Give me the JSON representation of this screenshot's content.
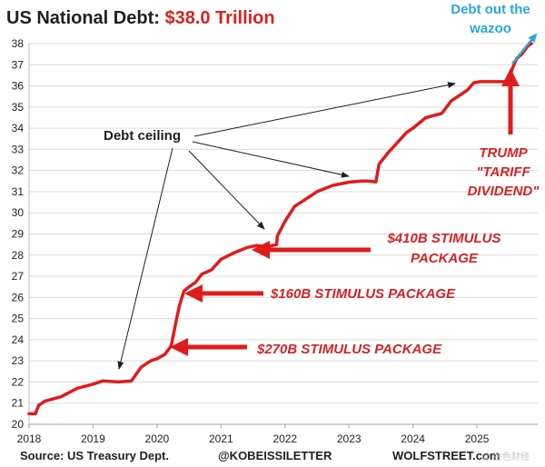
{
  "title": {
    "main": "US National Debt: ",
    "value": "$38.0 Trillion"
  },
  "wazoo": {
    "line1": "Debt out the",
    "line2": "wazoo"
  },
  "annotations": {
    "stimulus_410_line1": "$410B STIMULUS",
    "stimulus_410_line2": "PACKAGE",
    "stimulus_160": "$160B STIMULUS PACKAGE",
    "stimulus_270": "$270B STIMULUS PACKAGE",
    "trump_line1": "TRUMP",
    "trump_line2": "\"TARIFF",
    "trump_line3": "DIVIDEND\"",
    "debt_ceiling": "Debt ceiling"
  },
  "footer": {
    "source": "Source: US Treasury Dept.",
    "handle": "@KOBEISSILETTER",
    "site": "WOLFSTREET.com",
    "watermark": "@ 金色财经"
  },
  "colors": {
    "line": "#e01b1b",
    "arrow": "#e01b1b",
    "wazoo": "#2aa7d8",
    "grid": "#d9d9d9",
    "text": "#1f1f1f"
  },
  "chart_data": {
    "type": "line",
    "title": "US National Debt: $38.0 Trillion",
    "xlabel": "",
    "ylabel": "",
    "xlim": [
      2018.0,
      2025.95
    ],
    "ylim": [
      20,
      38
    ],
    "grid": "horizontal",
    "x_ticks": [
      "2018",
      "2019",
      "2020",
      "2021",
      "2022",
      "2023",
      "2024",
      "2025"
    ],
    "x_tick_values": [
      2018,
      2019,
      2020,
      2021,
      2022,
      2023,
      2024,
      2025
    ],
    "y_ticks": [
      20,
      21,
      22,
      23,
      24,
      25,
      26,
      27,
      28,
      29,
      30,
      31,
      32,
      33,
      34,
      35,
      36,
      37,
      38
    ],
    "series": [
      {
        "name": "",
        "x": [
          2018.0,
          2018.1,
          2018.15,
          2018.25,
          2018.5,
          2018.75,
          2019.0,
          2019.15,
          2019.4,
          2019.6,
          2019.75,
          2019.9,
          2020.0,
          2020.12,
          2020.22,
          2020.3,
          2020.35,
          2020.42,
          2020.5,
          2020.6,
          2020.7,
          2020.85,
          2021.0,
          2021.2,
          2021.4,
          2021.55,
          2021.7,
          2021.8,
          2021.87,
          2021.88,
          2022.0,
          2022.15,
          2022.3,
          2022.5,
          2022.75,
          2023.0,
          2023.2,
          2023.3,
          2023.42,
          2023.47,
          2023.6,
          2023.75,
          2023.9,
          2024.0,
          2024.2,
          2024.45,
          2024.6,
          2024.75,
          2024.85,
          2024.95,
          2025.05,
          2025.25,
          2025.5,
          2025.55,
          2025.62,
          2025.7,
          2025.8,
          2025.85
        ],
        "y": [
          20.5,
          20.5,
          20.9,
          21.1,
          21.3,
          21.7,
          21.9,
          22.05,
          22.0,
          22.05,
          22.7,
          23.0,
          23.1,
          23.3,
          23.7,
          24.9,
          25.6,
          26.3,
          26.5,
          26.7,
          27.1,
          27.3,
          27.8,
          28.1,
          28.35,
          28.45,
          28.4,
          28.45,
          28.5,
          28.9,
          29.6,
          30.3,
          30.6,
          31.0,
          31.3,
          31.45,
          31.5,
          31.5,
          31.46,
          32.3,
          32.8,
          33.3,
          33.8,
          34.0,
          34.5,
          34.7,
          35.3,
          35.6,
          35.8,
          36.15,
          36.2,
          36.2,
          36.2,
          36.8,
          37.3,
          37.5,
          37.9,
          38.0
        ]
      }
    ]
  }
}
